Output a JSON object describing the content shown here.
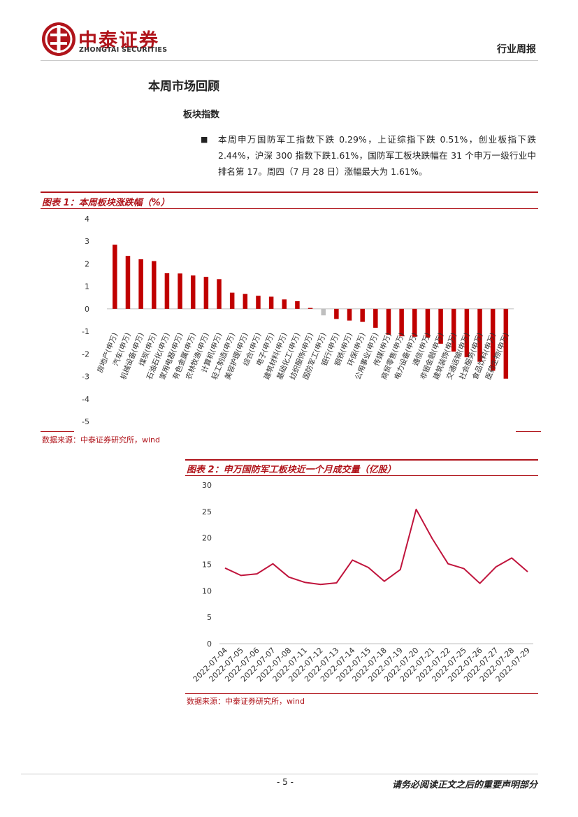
{
  "header": {
    "company_cn": "中泰证券",
    "company_en": "ZHONGTAI SECURITIES",
    "doc_type": "行业周报"
  },
  "section": {
    "title": "本周市场回顾",
    "subtitle": "板块指数",
    "paragraph": "本周申万国防军工指数下跌 0.29%，上证综指下跌 0.51%，创业板指下跌2.44%，沪深 300 指数下跌1.61%，国防军工板块跌幅在 31 个申万一级行业中排名第 17。周四（7 月 28 日）涨幅最大为 1.61%。"
  },
  "figure1": {
    "caption": "图表 1：本周板块涨跌幅（%）",
    "source": "数据来源：中泰证券研究所，wind"
  },
  "figure2": {
    "caption": "图表 2：申万国防军工板块近一个月成交量（亿股）",
    "source": "数据来源：中泰证券研究所，wind"
  },
  "colors": {
    "accent": "#b0141b",
    "bar": "#c00000",
    "highlight_bar": "#bfbfbf",
    "line": "#c0143c"
  },
  "chart_data": [
    {
      "type": "bar",
      "title": "本周板块涨跌幅（%）",
      "ylim": [
        -5,
        4
      ],
      "yticks": [
        4,
        3,
        2,
        1,
        0,
        -1,
        -2,
        -3,
        -4,
        -5
      ],
      "categories": [
        "房地产(申万)",
        "汽车(申万)",
        "机械设备(申万)",
        "煤炭(申万)",
        "石油石化(申万)",
        "家用电器(申万)",
        "有色金属(申万)",
        "农林牧渔(申万)",
        "计算机(申万)",
        "轻工制造(申万)",
        "美容护理(申万)",
        "综合(申万)",
        "电子(申万)",
        "建筑材料(申万)",
        "基础化工(申万)",
        "纺织服饰(申万)",
        "国防军工(申万)",
        "银行(申万)",
        "钢铁(申万)",
        "环保(申万)",
        "公用事业(申万)",
        "传媒(申万)",
        "商贸零售(申万)",
        "电力设备(申万)",
        "通信(申万)",
        "非银金融(申万)",
        "建筑装饰(申万)",
        "交通运输(申万)",
        "社会服务(申万)",
        "食品饮料(申万)",
        "医药生物(申万)"
      ],
      "values": [
        2.85,
        2.35,
        2.2,
        2.12,
        1.58,
        1.57,
        1.48,
        1.42,
        1.32,
        0.72,
        0.66,
        0.58,
        0.54,
        0.42,
        0.34,
        0.04,
        -0.29,
        -0.45,
        -0.52,
        -0.58,
        -0.84,
        -1.15,
        -1.22,
        -1.24,
        -1.28,
        -1.55,
        -1.9,
        -2.15,
        -2.35,
        -2.75,
        -3.1
      ],
      "highlight": "国防军工(申万)",
      "grid": false,
      "legend": "none"
    },
    {
      "type": "line",
      "title": "申万国防军工板块近一个月成交量（亿股）",
      "ylim": [
        0,
        30
      ],
      "yticks": [
        0,
        5,
        10,
        15,
        20,
        25,
        30
      ],
      "x": [
        "2022-07-04",
        "2022-07-05",
        "2022-07-06",
        "2022-07-07",
        "2022-07-08",
        "2022-07-11",
        "2022-07-12",
        "2022-07-13",
        "2022-07-14",
        "2022-07-15",
        "2022-07-18",
        "2022-07-19",
        "2022-07-20",
        "2022-07-21",
        "2022-07-22",
        "2022-07-25",
        "2022-07-26",
        "2022-07-27",
        "2022-07-28",
        "2022-07-29"
      ],
      "values": [
        14.3,
        12.9,
        13.2,
        15.1,
        12.6,
        11.6,
        11.2,
        11.5,
        15.8,
        14.4,
        11.8,
        14.0,
        25.4,
        19.9,
        15.1,
        14.2,
        11.4,
        14.5,
        16.2,
        13.6
      ],
      "grid": false,
      "legend": "none"
    }
  ]
}
